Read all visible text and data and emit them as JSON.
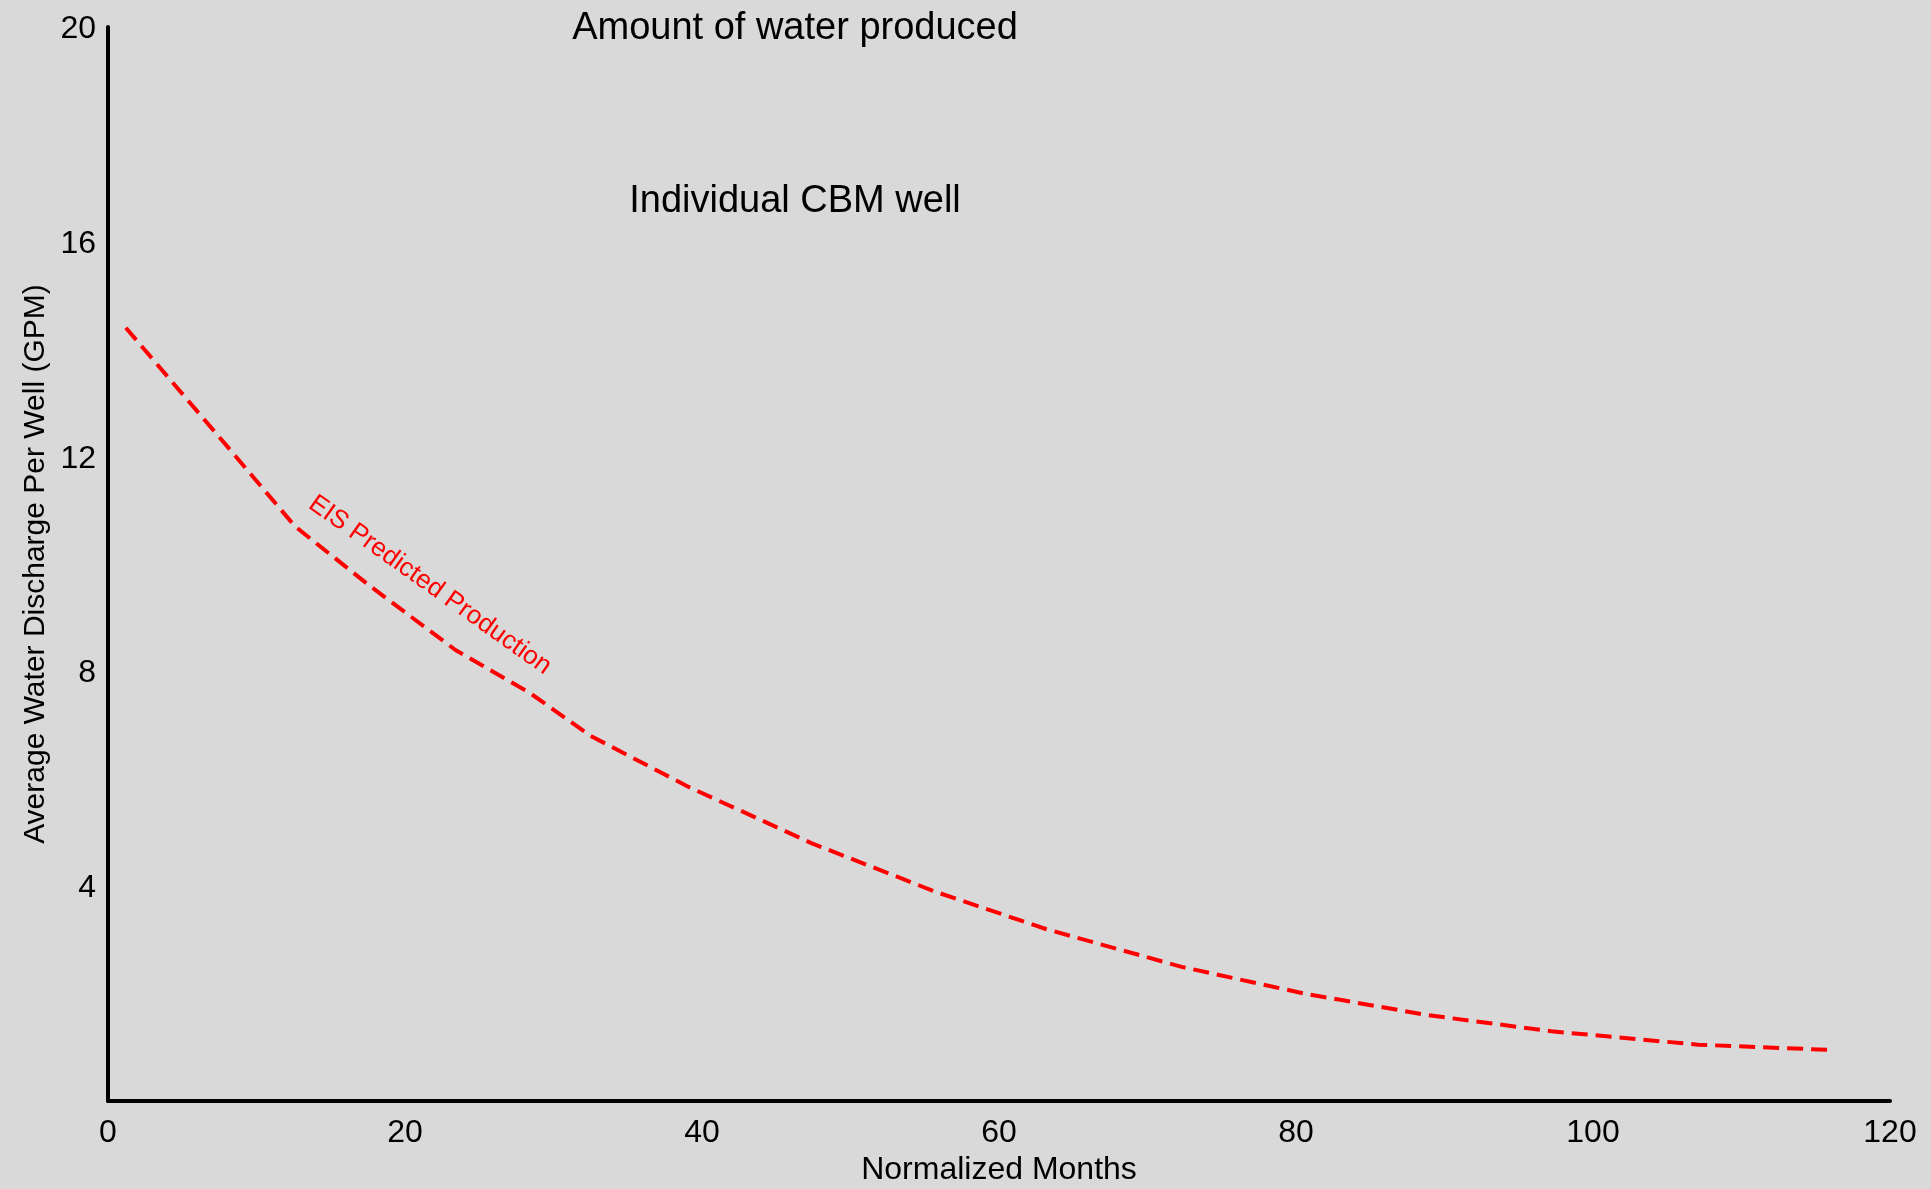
{
  "chart_data": {
    "type": "line",
    "title": "Amount of water produced",
    "subtitle": "Individual CBM well",
    "xlabel": "Normalized Months",
    "ylabel": "Average Water Discharge Per Well (GPM)",
    "x": [
      1.2,
      8,
      12.6,
      17.6,
      23.4,
      28.4,
      32.5,
      39.1,
      47.4,
      55.7,
      63.2,
      72.3,
      80.6,
      88.9,
      97.2,
      107.1,
      116.2
    ],
    "series": [
      {
        "name": "EIS Predicted Production",
        "color": "#ff0000",
        "values": [
          14.4,
          12.2,
          10.7,
          9.6,
          8.4,
          7.6,
          6.8,
          5.85,
          4.8,
          3.9,
          3.2,
          2.5,
          2.0,
          1.6,
          1.3,
          1.05,
          0.95
        ]
      }
    ],
    "xlim": [
      0,
      120
    ],
    "xticks": [
      0,
      20,
      40,
      60,
      80,
      100,
      120
    ],
    "ylim": [
      0,
      20
    ],
    "yticks": [
      4,
      8,
      12,
      16,
      20
    ],
    "grid": false,
    "legend": false,
    "marker": "none",
    "line_style": "dashed"
  }
}
